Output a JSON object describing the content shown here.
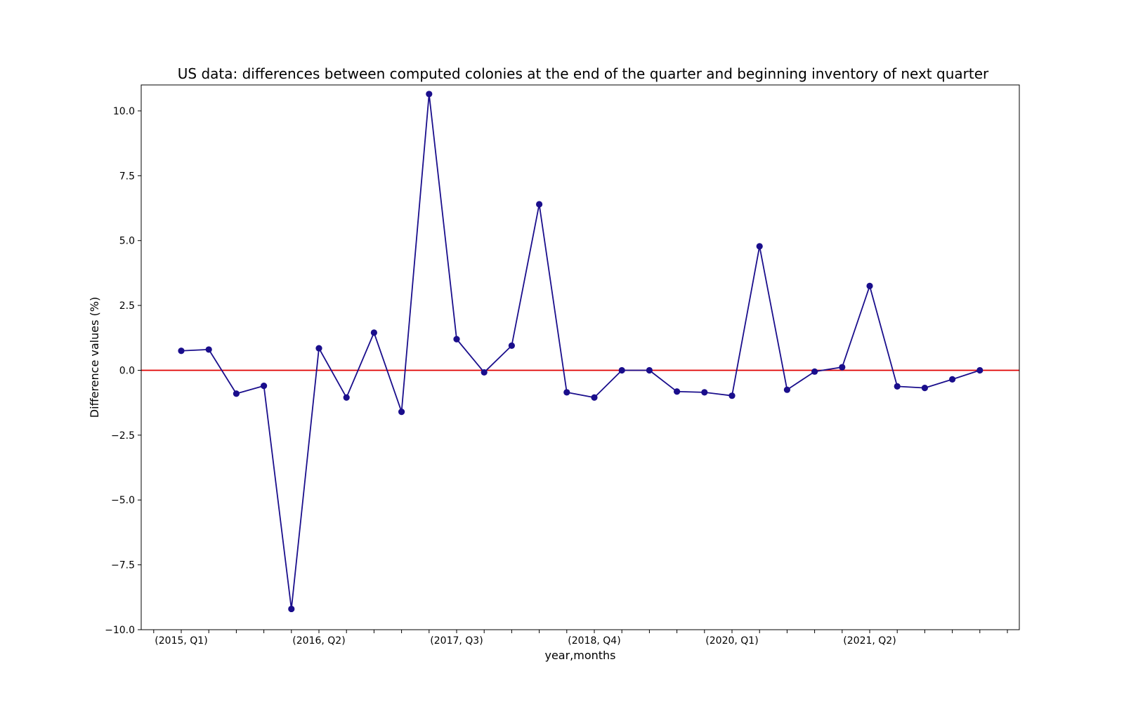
{
  "chart_data": {
    "type": "line",
    "title": "US data: differences between computed colonies at the end of the quarter and beginning inventory of next quarter",
    "xlabel": "year,months",
    "ylabel": "Difference values (%)",
    "ylim": [
      -10.0,
      11.0
    ],
    "yticks": [
      -10.0,
      -7.5,
      -5.0,
      -2.5,
      0.0,
      2.5,
      5.0,
      7.5,
      10.0
    ],
    "ytick_labels": [
      "−10.0",
      "−7.5",
      "−5.0",
      "−2.5",
      "0.0",
      "2.5",
      "5.0",
      "7.5",
      "10.0"
    ],
    "x_tick_labels": [
      {
        "index": 0,
        "label": "(2015, Q1)"
      },
      {
        "index": 5,
        "label": "(2016, Q2)"
      },
      {
        "index": 10,
        "label": "(2017, Q3)"
      },
      {
        "index": 15,
        "label": "(2018, Q4)"
      },
      {
        "index": 20,
        "label": "(2020, Q1)"
      },
      {
        "index": 25,
        "label": "(2021, Q2)"
      }
    ],
    "x_tick_count": 32,
    "reference_line": {
      "y": 0.0,
      "color": "#e00000"
    },
    "series_color": "#1a0e8c",
    "grid": false,
    "series": [
      {
        "values": [
          0.75,
          0.8,
          -0.9,
          -0.6,
          -9.2,
          0.85,
          -1.05,
          1.45,
          -1.6,
          10.65,
          1.2,
          -0.08,
          0.95,
          6.4,
          -0.85,
          -1.05,
          0.0,
          0.0,
          -0.82,
          -0.85,
          -0.98,
          4.78,
          -0.75,
          -0.05,
          0.12,
          3.25,
          -0.62,
          -0.68,
          -0.35,
          0.0
        ]
      }
    ]
  }
}
